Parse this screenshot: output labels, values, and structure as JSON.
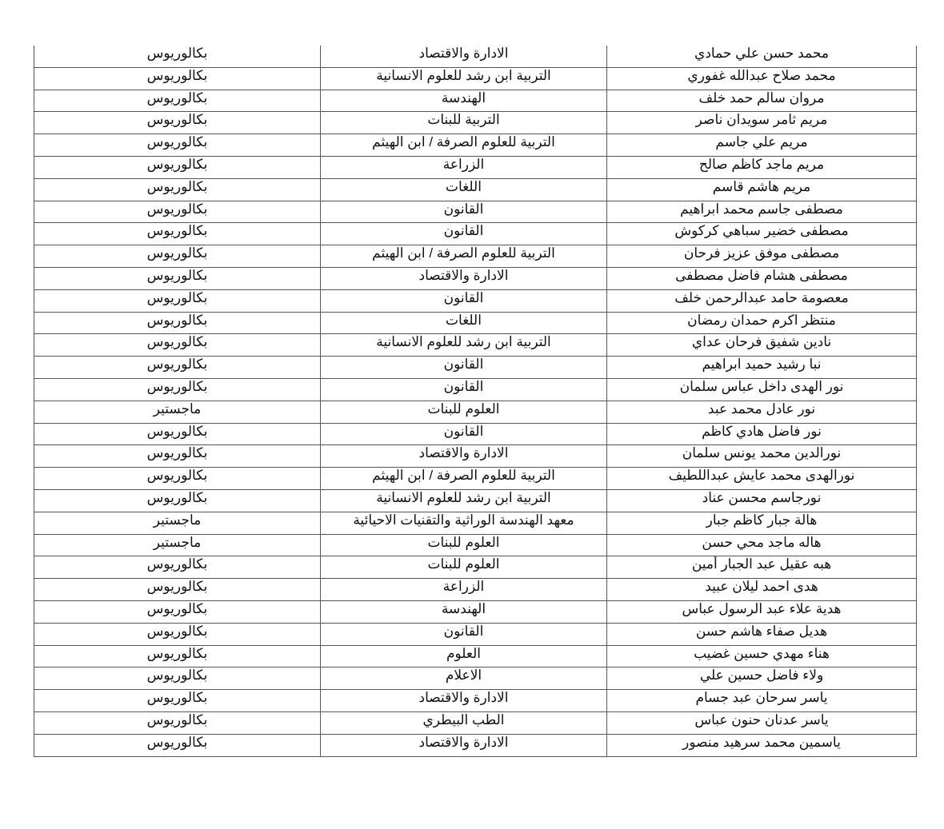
{
  "table": {
    "columns": [
      "name",
      "college",
      "degree"
    ],
    "rows": [
      [
        "محمد حسن علي حمادي",
        "الادارة والاقتصاد",
        "بكالوريوس"
      ],
      [
        "محمد صلاح عبدالله غفوري",
        "التربية ابن رشد للعلوم الانسانية",
        "بكالوريوس"
      ],
      [
        "مروان سالم حمد خلف",
        "الهندسة",
        "بكالوريوس"
      ],
      [
        "مريم ثامر سويدان ناصر",
        "التربية للبنات",
        "بكالوريوس"
      ],
      [
        "مريم علي جاسم",
        "التربية للعلوم الصرفة / ابن الهيثم",
        "بكالوريوس"
      ],
      [
        "مريم ماجد كاظم صالح",
        "الزراعة",
        "بكالوريوس"
      ],
      [
        "مريم هاشم قاسم",
        "اللغات",
        "بكالوريوس"
      ],
      [
        "مصطفى جاسم محمد ابراهيم",
        "القانون",
        "بكالوريوس"
      ],
      [
        "مصطفى خضير سباهي كركوش",
        "القانون",
        "بكالوريوس"
      ],
      [
        "مصطفى موفق عزيز فرحان",
        "التربية للعلوم الصرفة / ابن الهيثم",
        "بكالوريوس"
      ],
      [
        "مصطفى هشام فاضل مصطفى",
        "الادارة والاقتصاد",
        "بكالوريوس"
      ],
      [
        "معصومة حامد عبدالرحمن خلف",
        "القانون",
        "بكالوريوس"
      ],
      [
        "منتظر اكرم حمدان رمضان",
        "اللغات",
        "بكالوريوس"
      ],
      [
        "نادين شفيق فرحان عداي",
        "التربية ابن رشد للعلوم الانسانية",
        "بكالوريوس"
      ],
      [
        "نبا رشيد حميد ابراهيم",
        "القانون",
        "بكالوريوس"
      ],
      [
        "نور الهدى داخل عباس سلمان",
        "القانون",
        "بكالوريوس"
      ],
      [
        "نور عادل محمد عبد",
        "العلوم للبنات",
        "ماجستير"
      ],
      [
        "نور فاضل هادي كاظم",
        "القانون",
        "بكالوريوس"
      ],
      [
        "نورالدين محمد يونس سلمان",
        "الادارة والاقتصاد",
        "بكالوريوس"
      ],
      [
        "نورالهدى محمد عايش عبداللطيف",
        "التربية للعلوم الصرفة / ابن الهيثم",
        "بكالوريوس"
      ],
      [
        "نورجاسم محسن عناد",
        "التربية ابن رشد للعلوم الانسانية",
        "بكالوريوس"
      ],
      [
        "هالة جبار كاظم جبار",
        "معهد الهندسة الوراثية والتقنيات الاحيائية",
        "ماجستير"
      ],
      [
        "هاله ماجد محي حسن",
        "العلوم للبنات",
        "ماجستير"
      ],
      [
        "هبه عقيل عبد الجبار أمين",
        "العلوم للبنات",
        "بكالوريوس"
      ],
      [
        "هدى احمد ليلان عبيد",
        "الزراعة",
        "بكالوريوس"
      ],
      [
        "هدية علاء عبد الرسول عباس",
        "الهندسة",
        "بكالوريوس"
      ],
      [
        "هديل صفاء هاشم حسن",
        "القانون",
        "بكالوريوس"
      ],
      [
        "هناء مهدي حسين غضيب",
        "العلوم",
        "بكالوريوس"
      ],
      [
        "ولاء فاضل حسين علي",
        "الاعلام",
        "بكالوريوس"
      ],
      [
        "ياسر سرحان عبد جسام",
        "الادارة والاقتصاد",
        "بكالوريوس"
      ],
      [
        "ياسر عدنان حنون عباس",
        "الطب البيطري",
        "بكالوريوس"
      ],
      [
        "ياسمين محمد سرهيد منصور",
        "الادارة والاقتصاد",
        "بكالوريوس"
      ]
    ]
  }
}
